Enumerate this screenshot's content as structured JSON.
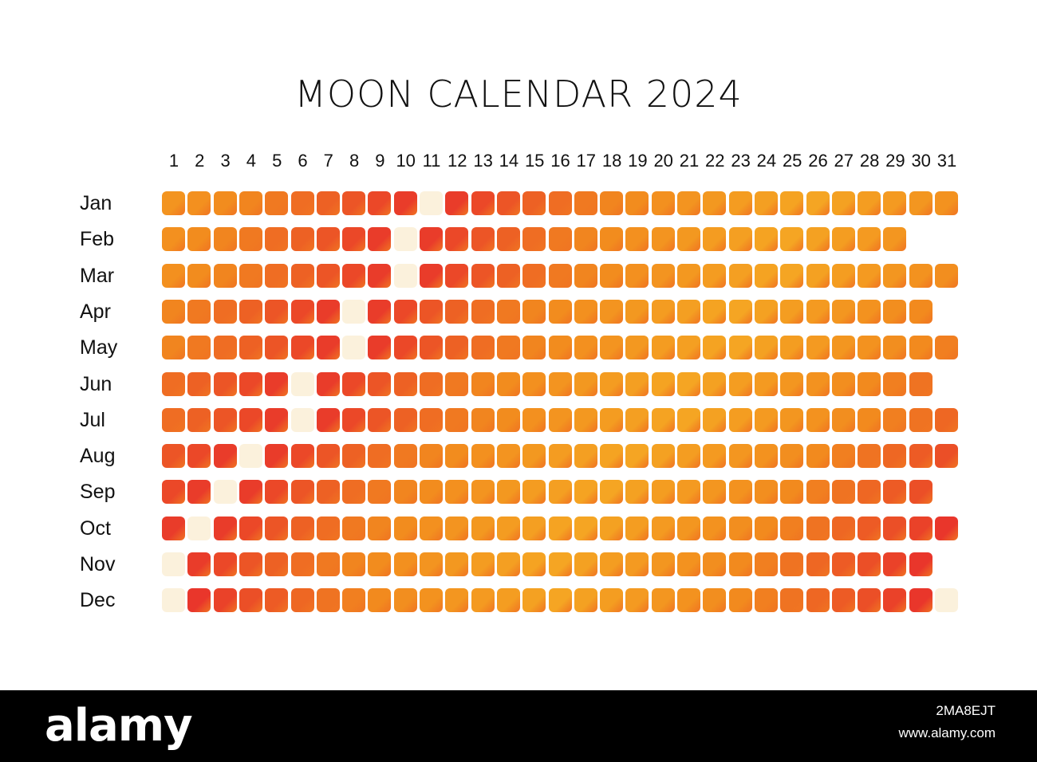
{
  "title": "MOON CALENDAR 2024",
  "day_numbers": [
    "1",
    "2",
    "3",
    "4",
    "5",
    "6",
    "7",
    "8",
    "9",
    "10",
    "11",
    "12",
    "13",
    "14",
    "15",
    "16",
    "17",
    "18",
    "19",
    "20",
    "21",
    "22",
    "23",
    "24",
    "25",
    "26",
    "27",
    "28",
    "29",
    "30",
    "31"
  ],
  "months": [
    {
      "label": "Jan",
      "days": 31,
      "new_moon_days": [
        11
      ]
    },
    {
      "label": "Feb",
      "days": 29,
      "new_moon_days": [
        10
      ]
    },
    {
      "label": "Mar",
      "days": 31,
      "new_moon_days": [
        10
      ]
    },
    {
      "label": "Apr",
      "days": 30,
      "new_moon_days": [
        8
      ]
    },
    {
      "label": "May",
      "days": 31,
      "new_moon_days": [
        8
      ]
    },
    {
      "label": "Jun",
      "days": 30,
      "new_moon_days": [
        6
      ]
    },
    {
      "label": "Jul",
      "days": 31,
      "new_moon_days": [
        6
      ]
    },
    {
      "label": "Aug",
      "days": 31,
      "new_moon_days": [
        4
      ]
    },
    {
      "label": "Sep",
      "days": 30,
      "new_moon_days": [
        3
      ]
    },
    {
      "label": "Oct",
      "days": 31,
      "new_moon_days": [
        2
      ]
    },
    {
      "label": "Nov",
      "days": 30,
      "new_moon_days": [
        1
      ]
    },
    {
      "label": "Dec",
      "days": 31,
      "new_moon_days": [
        1,
        31
      ]
    }
  ],
  "colors": {
    "red": "#e8302c",
    "orange": "#f28a1e",
    "amber": "#f5a623",
    "new_moon": "#fbf1dc"
  },
  "footer": {
    "brand": "alamy",
    "image_id": "2MA8EJT",
    "site": "www.alamy.com"
  }
}
